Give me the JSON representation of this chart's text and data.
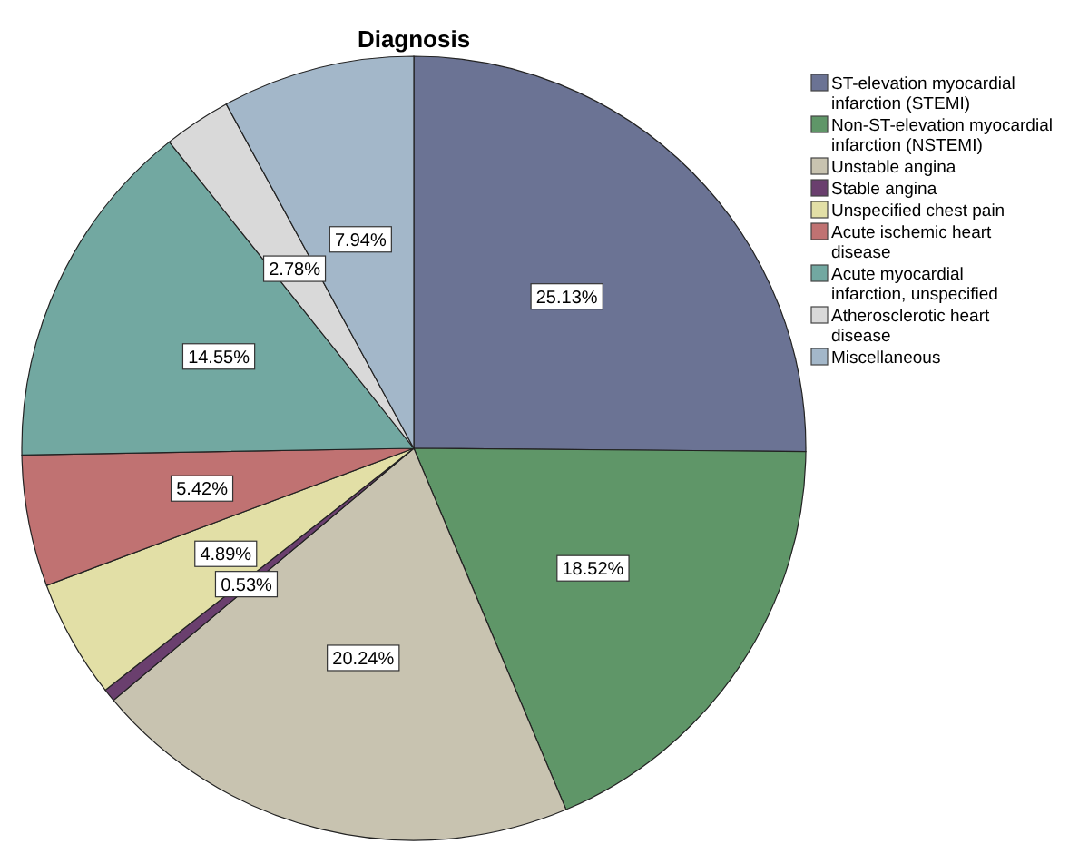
{
  "chart_data": {
    "type": "pie",
    "title": "Diagnosis",
    "categories": [
      "ST-elevation myocardial infarction (STEMI)",
      "Non-ST-elevation myocardial infarction (NSTEMI)",
      "Unstable angina",
      "Stable angina",
      "Unspecified chest pain",
      "Acute ischemic heart disease",
      "Acute myocardial infarction, unspecified",
      "Atherosclerotic heart disease",
      "Miscellaneous"
    ],
    "values": [
      25.13,
      18.52,
      20.24,
      0.53,
      4.89,
      5.42,
      14.55,
      2.78,
      7.94
    ],
    "colors": [
      "#6b7394",
      "#5f9668",
      "#c8c3b0",
      "#6a3f6e",
      "#e2dfa6",
      "#c07272",
      "#72a8a1",
      "#d9d9d9",
      "#a3b7c9"
    ],
    "value_labels": [
      "25.13%",
      "18.52%",
      "20.24%",
      "0.53%",
      "4.89%",
      "5.42%",
      "14.55%",
      "2.78%",
      "7.94%"
    ],
    "legend": "right"
  }
}
